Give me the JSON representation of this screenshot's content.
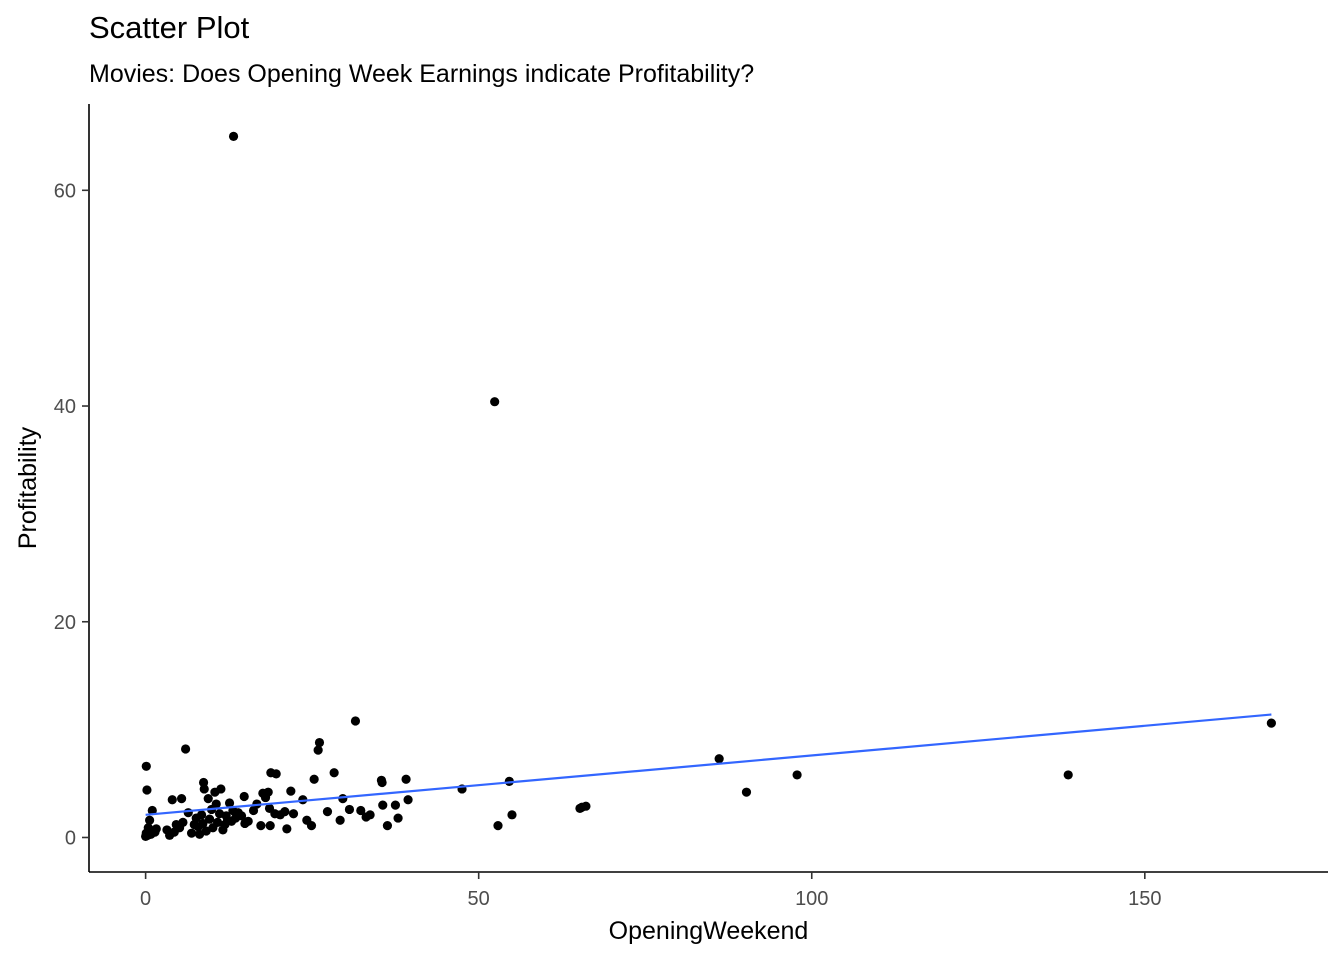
{
  "chart_data": {
    "type": "scatter",
    "title": "Scatter Plot",
    "subtitle": "Movies: Does Opening Week Earnings indicate Profitability?",
    "xlabel": "OpeningWeekend",
    "ylabel": "Profitability",
    "xlim": [
      -8.5,
      177.5
    ],
    "ylim": [
      -3.2,
      68.0
    ],
    "xticks": [
      0,
      50,
      100,
      150
    ],
    "yticks": [
      0,
      20,
      40,
      60
    ],
    "grid": false,
    "point_color": "#000000",
    "line_color": "#3366FF",
    "trend": {
      "x": [
        0,
        169.0
      ],
      "y": [
        2.1,
        11.4
      ]
    },
    "points": [
      [
        13.2,
        65.0
      ],
      [
        52.4,
        40.4
      ],
      [
        169.0,
        10.6
      ],
      [
        138.5,
        5.8
      ],
      [
        97.8,
        5.8
      ],
      [
        90.2,
        4.2
      ],
      [
        86.1,
        7.3
      ],
      [
        66.1,
        2.9
      ],
      [
        65.5,
        2.8
      ],
      [
        65.2,
        2.7
      ],
      [
        54.6,
        5.2
      ],
      [
        55.0,
        2.1
      ],
      [
        52.9,
        1.1
      ],
      [
        47.5,
        4.5
      ],
      [
        39.1,
        5.4
      ],
      [
        39.4,
        3.5
      ],
      [
        37.9,
        1.8
      ],
      [
        37.5,
        3.0
      ],
      [
        36.3,
        1.1
      ],
      [
        35.6,
        3.0
      ],
      [
        35.4,
        5.3
      ],
      [
        35.5,
        5.1
      ],
      [
        33.7,
        2.1
      ],
      [
        33.1,
        1.9
      ],
      [
        32.3,
        2.5
      ],
      [
        31.5,
        10.8
      ],
      [
        30.6,
        2.6
      ],
      [
        29.6,
        3.6
      ],
      [
        29.2,
        1.6
      ],
      [
        28.3,
        6.0
      ],
      [
        27.3,
        2.4
      ],
      [
        26.1,
        8.8
      ],
      [
        25.9,
        8.1
      ],
      [
        25.3,
        5.4
      ],
      [
        24.9,
        1.1
      ],
      [
        24.2,
        1.6
      ],
      [
        23.6,
        3.5
      ],
      [
        22.2,
        2.2
      ],
      [
        21.8,
        4.3
      ],
      [
        21.2,
        0.8
      ],
      [
        20.9,
        2.4
      ],
      [
        20.2,
        2.1
      ],
      [
        19.6,
        5.9
      ],
      [
        19.4,
        2.2
      ],
      [
        18.8,
        6.0
      ],
      [
        18.6,
        2.7
      ],
      [
        18.7,
        1.1
      ],
      [
        18.4,
        4.2
      ],
      [
        18.0,
        3.7
      ],
      [
        17.6,
        4.1
      ],
      [
        17.3,
        1.1
      ],
      [
        16.7,
        3.1
      ],
      [
        16.2,
        2.5
      ],
      [
        15.4,
        1.5
      ],
      [
        14.8,
        3.8
      ],
      [
        14.9,
        1.3
      ],
      [
        14.4,
        2.0
      ],
      [
        13.9,
        2.3
      ],
      [
        13.5,
        1.8
      ],
      [
        13.1,
        2.5
      ],
      [
        12.9,
        1.5
      ],
      [
        12.6,
        3.2
      ],
      [
        12.3,
        1.6
      ],
      [
        12.1,
        2.0
      ],
      [
        11.9,
        1.2
      ],
      [
        11.6,
        0.7
      ],
      [
        11.3,
        4.5
      ],
      [
        11.1,
        2.2
      ],
      [
        10.8,
        1.4
      ],
      [
        10.6,
        3.1
      ],
      [
        10.4,
        4.2
      ],
      [
        10.1,
        0.9
      ],
      [
        9.9,
        2.6
      ],
      [
        9.6,
        1.7
      ],
      [
        9.4,
        3.6
      ],
      [
        9.1,
        0.6
      ],
      [
        8.8,
        4.5
      ],
      [
        8.7,
        5.1
      ],
      [
        8.6,
        1.3
      ],
      [
        8.4,
        2.1
      ],
      [
        8.1,
        0.3
      ],
      [
        7.9,
        1.0
      ],
      [
        7.6,
        1.8
      ],
      [
        7.3,
        1.2
      ],
      [
        6.9,
        0.4
      ],
      [
        6.4,
        2.3
      ],
      [
        6.0,
        8.2
      ],
      [
        5.6,
        1.4
      ],
      [
        5.4,
        3.6
      ],
      [
        5.1,
        0.9
      ],
      [
        4.6,
        1.2
      ],
      [
        4.3,
        0.5
      ],
      [
        4.0,
        3.5
      ],
      [
        3.6,
        0.2
      ],
      [
        3.2,
        0.7
      ],
      [
        1.6,
        0.8
      ],
      [
        1.4,
        0.5
      ],
      [
        1.0,
        2.5
      ],
      [
        0.8,
        0.3
      ],
      [
        0.6,
        1.6
      ],
      [
        0.4,
        0.9
      ],
      [
        0.3,
        0.2
      ],
      [
        0.2,
        4.4
      ],
      [
        0.1,
        6.6
      ],
      [
        0.0,
        0.1
      ],
      [
        0.1,
        0.4
      ],
      [
        0.5,
        0.6
      ]
    ]
  }
}
